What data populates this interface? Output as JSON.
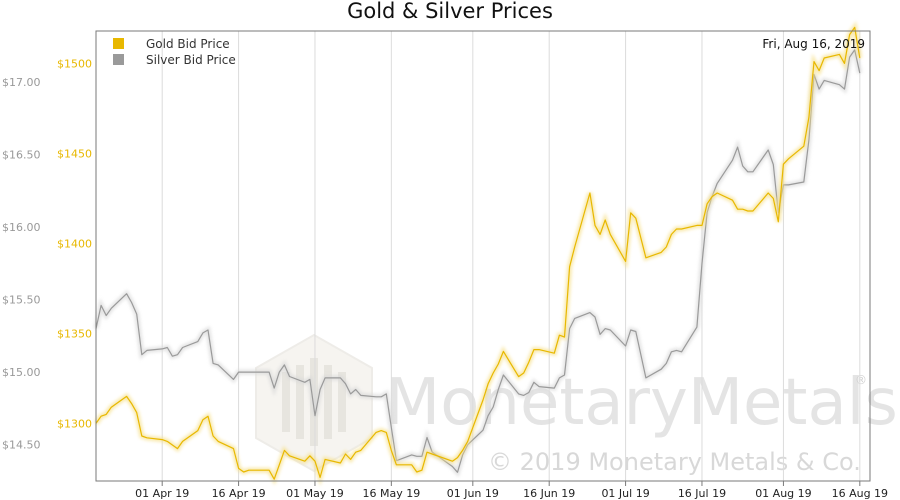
{
  "chart_data": {
    "type": "line",
    "title": "Gold & Silver Prices",
    "date_label": "Fri, Aug 16, 2019",
    "x_tick_labels": [
      "01 Apr 19",
      "16 Apr 19",
      "01 May 19",
      "16 May 19",
      "01 Jun 19",
      "16 Jun 19",
      "01 Jul 19",
      "16 Jul 19",
      "01 Aug 19",
      "16 Aug 19"
    ],
    "x_range": [
      "2019-03-19",
      "2019-08-18"
    ],
    "left_axis": {
      "ticks": [
        "$14.50",
        "$15.00",
        "$15.50",
        "$16.00",
        "$16.50",
        "$17.00"
      ],
      "range": [
        14.25,
        17.35
      ]
    },
    "gold_axis": {
      "ticks": [
        "$1300",
        "$1350",
        "$1400",
        "$1450",
        "$1500"
      ],
      "range": [
        1268,
        1518
      ]
    },
    "series": [
      {
        "name": "Gold Bid Price",
        "color": "#e8b800",
        "points": [
          [
            "2019-03-19",
            1300
          ],
          [
            "2019-03-20",
            1304
          ],
          [
            "2019-03-21",
            1305
          ],
          [
            "2019-03-22",
            1309
          ],
          [
            "2019-03-25",
            1315
          ],
          [
            "2019-03-26",
            1311
          ],
          [
            "2019-03-27",
            1306
          ],
          [
            "2019-03-28",
            1293
          ],
          [
            "2019-03-29",
            1292
          ],
          [
            "2019-04-01",
            1291
          ],
          [
            "2019-04-02",
            1290
          ],
          [
            "2019-04-03",
            1288
          ],
          [
            "2019-04-04",
            1286
          ],
          [
            "2019-04-05",
            1290
          ],
          [
            "2019-04-08",
            1296
          ],
          [
            "2019-04-09",
            1302
          ],
          [
            "2019-04-10",
            1304
          ],
          [
            "2019-04-11",
            1293
          ],
          [
            "2019-04-12",
            1290
          ],
          [
            "2019-04-15",
            1286
          ],
          [
            "2019-04-16",
            1275
          ],
          [
            "2019-04-17",
            1273
          ],
          [
            "2019-04-18",
            1274
          ],
          [
            "2019-04-22",
            1274
          ],
          [
            "2019-04-23",
            1269
          ],
          [
            "2019-04-24",
            1277
          ],
          [
            "2019-04-25",
            1285
          ],
          [
            "2019-04-26",
            1282
          ],
          [
            "2019-04-29",
            1279
          ],
          [
            "2019-04-30",
            1282
          ],
          [
            "2019-05-01",
            1279
          ],
          [
            "2019-05-02",
            1270
          ],
          [
            "2019-05-03",
            1280
          ],
          [
            "2019-05-06",
            1278
          ],
          [
            "2019-05-07",
            1283
          ],
          [
            "2019-05-08",
            1280
          ],
          [
            "2019-05-09",
            1284
          ],
          [
            "2019-05-10",
            1285
          ],
          [
            "2019-05-13",
            1295
          ],
          [
            "2019-05-14",
            1296
          ],
          [
            "2019-05-15",
            1295
          ],
          [
            "2019-05-16",
            1285
          ],
          [
            "2019-05-17",
            1277
          ],
          [
            "2019-05-20",
            1277
          ],
          [
            "2019-05-21",
            1273
          ],
          [
            "2019-05-22",
            1274
          ],
          [
            "2019-05-23",
            1284
          ],
          [
            "2019-05-24",
            1283
          ],
          [
            "2019-05-28",
            1279
          ],
          [
            "2019-05-29",
            1281
          ],
          [
            "2019-05-30",
            1285
          ],
          [
            "2019-05-31",
            1290
          ],
          [
            "2019-06-03",
            1313
          ],
          [
            "2019-06-04",
            1322
          ],
          [
            "2019-06-05",
            1328
          ],
          [
            "2019-06-06",
            1333
          ],
          [
            "2019-06-07",
            1340
          ],
          [
            "2019-06-10",
            1326
          ],
          [
            "2019-06-11",
            1328
          ],
          [
            "2019-06-12",
            1334
          ],
          [
            "2019-06-13",
            1341
          ],
          [
            "2019-06-14",
            1341
          ],
          [
            "2019-06-17",
            1339
          ],
          [
            "2019-06-18",
            1349
          ],
          [
            "2019-06-19",
            1348
          ],
          [
            "2019-06-20",
            1387
          ],
          [
            "2019-06-21",
            1398
          ],
          [
            "2019-06-24",
            1428
          ],
          [
            "2019-06-25",
            1410
          ],
          [
            "2019-06-26",
            1405
          ],
          [
            "2019-06-27",
            1413
          ],
          [
            "2019-06-28",
            1405
          ],
          [
            "2019-07-01",
            1390
          ],
          [
            "2019-07-02",
            1417
          ],
          [
            "2019-07-03",
            1414
          ],
          [
            "2019-07-05",
            1392
          ],
          [
            "2019-07-08",
            1395
          ],
          [
            "2019-07-09",
            1398
          ],
          [
            "2019-07-10",
            1405
          ],
          [
            "2019-07-11",
            1408
          ],
          [
            "2019-07-12",
            1408
          ],
          [
            "2019-07-15",
            1410
          ],
          [
            "2019-07-16",
            1410
          ],
          [
            "2019-07-17",
            1422
          ],
          [
            "2019-07-18",
            1426
          ],
          [
            "2019-07-19",
            1428
          ],
          [
            "2019-07-22",
            1424
          ],
          [
            "2019-07-23",
            1419
          ],
          [
            "2019-07-24",
            1419
          ],
          [
            "2019-07-25",
            1418
          ],
          [
            "2019-07-26",
            1418
          ],
          [
            "2019-07-29",
            1428
          ],
          [
            "2019-07-30",
            1425
          ],
          [
            "2019-07-31",
            1412
          ],
          [
            "2019-08-01",
            1444
          ],
          [
            "2019-08-02",
            1447
          ],
          [
            "2019-08-05",
            1454
          ],
          [
            "2019-08-06",
            1470
          ],
          [
            "2019-08-07",
            1501
          ],
          [
            "2019-08-08",
            1496
          ],
          [
            "2019-08-09",
            1503
          ],
          [
            "2019-08-12",
            1505
          ],
          [
            "2019-08-13",
            1500
          ],
          [
            "2019-08-14",
            1516
          ],
          [
            "2019-08-15",
            1520
          ],
          [
            "2019-08-16",
            1503
          ]
        ]
      },
      {
        "name": "Silver Bid Price",
        "color": "#9a9a9a",
        "points": [
          [
            "2019-03-19",
            15.3
          ],
          [
            "2019-03-20",
            15.46
          ],
          [
            "2019-03-21",
            15.39
          ],
          [
            "2019-03-22",
            15.44
          ],
          [
            "2019-03-25",
            15.54
          ],
          [
            "2019-03-26",
            15.48
          ],
          [
            "2019-03-27",
            15.4
          ],
          [
            "2019-03-28",
            15.12
          ],
          [
            "2019-03-29",
            15.15
          ],
          [
            "2019-04-01",
            15.16
          ],
          [
            "2019-04-02",
            15.17
          ],
          [
            "2019-04-03",
            15.11
          ],
          [
            "2019-04-04",
            15.12
          ],
          [
            "2019-04-05",
            15.17
          ],
          [
            "2019-04-08",
            15.21
          ],
          [
            "2019-04-09",
            15.27
          ],
          [
            "2019-04-10",
            15.29
          ],
          [
            "2019-04-11",
            15.06
          ],
          [
            "2019-04-12",
            15.05
          ],
          [
            "2019-04-15",
            14.95
          ],
          [
            "2019-04-16",
            15.0
          ],
          [
            "2019-04-17",
            15.0
          ],
          [
            "2019-04-18",
            15.0
          ],
          [
            "2019-04-22",
            15.0
          ],
          [
            "2019-04-23",
            14.89
          ],
          [
            "2019-04-24",
            15.0
          ],
          [
            "2019-04-25",
            15.05
          ],
          [
            "2019-04-26",
            14.97
          ],
          [
            "2019-04-29",
            14.93
          ],
          [
            "2019-04-30",
            14.95
          ],
          [
            "2019-05-01",
            14.7
          ],
          [
            "2019-05-02",
            14.88
          ],
          [
            "2019-05-03",
            14.96
          ],
          [
            "2019-05-06",
            14.96
          ],
          [
            "2019-05-07",
            14.92
          ],
          [
            "2019-05-08",
            14.85
          ],
          [
            "2019-05-09",
            14.88
          ],
          [
            "2019-05-10",
            14.84
          ],
          [
            "2019-05-13",
            14.83
          ],
          [
            "2019-05-14",
            14.83
          ],
          [
            "2019-05-15",
            14.85
          ],
          [
            "2019-05-16",
            14.62
          ],
          [
            "2019-05-17",
            14.39
          ],
          [
            "2019-05-20",
            14.43
          ],
          [
            "2019-05-21",
            14.42
          ],
          [
            "2019-05-22",
            14.42
          ],
          [
            "2019-05-23",
            14.55
          ],
          [
            "2019-05-24",
            14.45
          ],
          [
            "2019-05-28",
            14.35
          ],
          [
            "2019-05-29",
            14.31
          ],
          [
            "2019-05-30",
            14.43
          ],
          [
            "2019-05-31",
            14.5
          ],
          [
            "2019-06-03",
            14.6
          ],
          [
            "2019-06-04",
            14.7
          ],
          [
            "2019-06-05",
            14.76
          ],
          [
            "2019-06-06",
            14.88
          ],
          [
            "2019-06-07",
            14.98
          ],
          [
            "2019-06-10",
            14.85
          ],
          [
            "2019-06-11",
            14.84
          ],
          [
            "2019-06-12",
            14.86
          ],
          [
            "2019-06-13",
            14.93
          ],
          [
            "2019-06-14",
            14.9
          ],
          [
            "2019-06-17",
            14.89
          ],
          [
            "2019-06-18",
            14.96
          ],
          [
            "2019-06-19",
            14.98
          ],
          [
            "2019-06-20",
            15.3
          ],
          [
            "2019-06-21",
            15.37
          ],
          [
            "2019-06-24",
            15.41
          ],
          [
            "2019-06-25",
            15.38
          ],
          [
            "2019-06-26",
            15.26
          ],
          [
            "2019-06-27",
            15.3
          ],
          [
            "2019-06-28",
            15.29
          ],
          [
            "2019-07-01",
            15.18
          ],
          [
            "2019-07-02",
            15.29
          ],
          [
            "2019-07-03",
            15.28
          ],
          [
            "2019-07-05",
            14.96
          ],
          [
            "2019-07-08",
            15.02
          ],
          [
            "2019-07-09",
            15.06
          ],
          [
            "2019-07-10",
            15.14
          ],
          [
            "2019-07-11",
            15.15
          ],
          [
            "2019-07-12",
            15.14
          ],
          [
            "2019-07-15",
            15.31
          ],
          [
            "2019-07-16",
            15.75
          ],
          [
            "2019-07-17",
            16.1
          ],
          [
            "2019-07-18",
            16.21
          ],
          [
            "2019-07-19",
            16.3
          ],
          [
            "2019-07-22",
            16.46
          ],
          [
            "2019-07-23",
            16.55
          ],
          [
            "2019-07-24",
            16.42
          ],
          [
            "2019-07-25",
            16.38
          ],
          [
            "2019-07-26",
            16.38
          ],
          [
            "2019-07-29",
            16.53
          ],
          [
            "2019-07-30",
            16.43
          ],
          [
            "2019-07-31",
            16.1
          ],
          [
            "2019-08-01",
            16.29
          ],
          [
            "2019-08-02",
            16.29
          ],
          [
            "2019-08-05",
            16.31
          ],
          [
            "2019-08-06",
            16.6
          ],
          [
            "2019-08-07",
            17.05
          ],
          [
            "2019-08-08",
            16.95
          ],
          [
            "2019-08-09",
            17.01
          ],
          [
            "2019-08-12",
            16.98
          ],
          [
            "2019-08-13",
            16.95
          ],
          [
            "2019-08-14",
            17.17
          ],
          [
            "2019-08-15",
            17.22
          ],
          [
            "2019-08-16",
            17.06
          ]
        ]
      }
    ],
    "grid": "vertical",
    "legend_position": "top-left"
  },
  "watermark": {
    "text": "MonetaryMetals",
    "registered": "®",
    "copyright": "© 2019 Monetary Metals & Co."
  }
}
